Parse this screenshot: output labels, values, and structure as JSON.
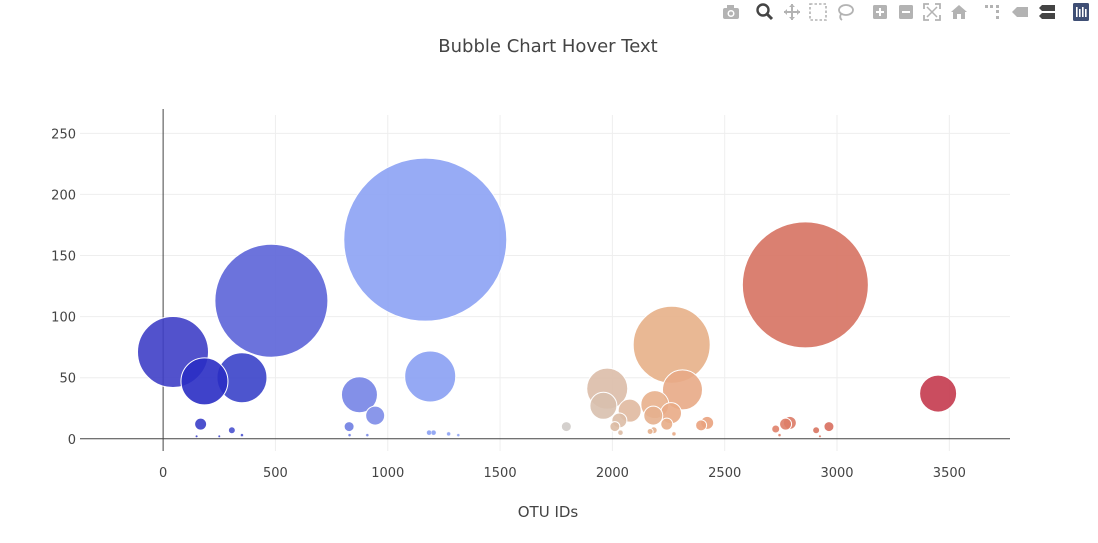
{
  "chart_data": {
    "type": "scatter",
    "mode": "markers",
    "title": "Bubble Chart Hover Text",
    "xlabel": "OTU IDs",
    "ylabel": "",
    "xlim": [
      -370,
      3770
    ],
    "ylim": [
      -10,
      265
    ],
    "xticks": [
      0,
      500,
      1000,
      1500,
      2000,
      2500,
      3000,
      3500
    ],
    "yticks": [
      0,
      50,
      100,
      150,
      200,
      250
    ],
    "marker_size_scale": 0.5,
    "grid": true,
    "colorscale": "Bluered",
    "points": [
      {
        "x": 44,
        "y": 71,
        "color": "#3f3fc6"
      },
      {
        "x": 184,
        "y": 47,
        "color": "#2a2ec4"
      },
      {
        "x": 351,
        "y": 50,
        "color": "#3a43c9"
      },
      {
        "x": 482,
        "y": 113,
        "color": "#5c64d8"
      },
      {
        "x": 167,
        "y": 12,
        "color": "#3a3ec8"
      },
      {
        "x": 306,
        "y": 7,
        "color": "#4a52cf"
      },
      {
        "x": 874,
        "y": 36,
        "color": "#7684e6"
      },
      {
        "x": 944,
        "y": 19,
        "color": "#7d8ce8"
      },
      {
        "x": 828,
        "y": 10,
        "color": "#6f7ee2"
      },
      {
        "x": 1167,
        "y": 163,
        "color": "#8ca2f4"
      },
      {
        "x": 1189,
        "y": 51,
        "color": "#8aa0f3"
      },
      {
        "x": 1795,
        "y": 10,
        "color": "#cfcbc8"
      },
      {
        "x": 1977,
        "y": 41,
        "color": "#dbbda8"
      },
      {
        "x": 1960,
        "y": 27,
        "color": "#d8c0ae"
      },
      {
        "x": 2077,
        "y": 23,
        "color": "#e0b9a0"
      },
      {
        "x": 2031,
        "y": 15,
        "color": "#dcbca6"
      },
      {
        "x": 2264,
        "y": 77,
        "color": "#e7b088"
      },
      {
        "x": 2189,
        "y": 28,
        "color": "#e8b08c"
      },
      {
        "x": 2312,
        "y": 40,
        "color": "#e8aa86"
      },
      {
        "x": 2182,
        "y": 19,
        "color": "#e6b08e"
      },
      {
        "x": 2261,
        "y": 21,
        "color": "#e9ab86"
      },
      {
        "x": 2242,
        "y": 12,
        "color": "#e8ad88"
      },
      {
        "x": 2422,
        "y": 13,
        "color": "#e9a27e"
      },
      {
        "x": 2395,
        "y": 11,
        "color": "#eaa27e"
      },
      {
        "x": 2859,
        "y": 126,
        "color": "#d67262"
      },
      {
        "x": 2790,
        "y": 13,
        "color": "#dc7a66"
      },
      {
        "x": 2771,
        "y": 12,
        "color": "#de7e68"
      },
      {
        "x": 2964,
        "y": 10,
        "color": "#d86e5e"
      },
      {
        "x": 2727,
        "y": 8,
        "color": "#e0826a"
      },
      {
        "x": 2907,
        "y": 7,
        "color": "#d87460"
      },
      {
        "x": 3450,
        "y": 37,
        "color": "#c43a4e"
      },
      {
        "x": 2011,
        "y": 10,
        "color": "#dcbba4"
      },
      {
        "x": 2168,
        "y": 6,
        "color": "#e5b08c"
      },
      {
        "x": 1184,
        "y": 5,
        "color": "#8aa0f3"
      },
      {
        "x": 1204,
        "y": 5,
        "color": "#8aa0f3"
      },
      {
        "x": 1271,
        "y": 4,
        "color": "#8ca2f4"
      },
      {
        "x": 1314,
        "y": 3,
        "color": "#8fa4f4"
      },
      {
        "x": 830,
        "y": 3,
        "color": "#6f7ee2"
      },
      {
        "x": 909,
        "y": 3,
        "color": "#7888e6"
      },
      {
        "x": 351,
        "y": 3,
        "color": "#4a52cf"
      },
      {
        "x": 250,
        "y": 2,
        "color": "#4049cb"
      },
      {
        "x": 149,
        "y": 2,
        "color": "#3a3ec8"
      },
      {
        "x": 2036,
        "y": 5,
        "color": "#dcbba4"
      },
      {
        "x": 2184,
        "y": 7,
        "color": "#e6b08e"
      },
      {
        "x": 2274,
        "y": 4,
        "color": "#e8ab86"
      },
      {
        "x": 2744,
        "y": 3,
        "color": "#de7e68"
      },
      {
        "x": 2924,
        "y": 2,
        "color": "#d87460"
      }
    ]
  },
  "modebar": {
    "buttons": [
      {
        "name": "camera-icon"
      },
      {
        "name": "zoom-icon"
      },
      {
        "name": "pan-icon"
      },
      {
        "name": "box-select-icon"
      },
      {
        "name": "lasso-select-icon"
      },
      {
        "name": "zoom-in-icon"
      },
      {
        "name": "zoom-out-icon"
      },
      {
        "name": "autoscale-icon"
      },
      {
        "name": "reset-axes-icon"
      },
      {
        "name": "spike-lines-icon"
      },
      {
        "name": "hover-closest-icon"
      },
      {
        "name": "hover-compare-icon"
      },
      {
        "name": "plotly-logo-icon"
      }
    ]
  }
}
